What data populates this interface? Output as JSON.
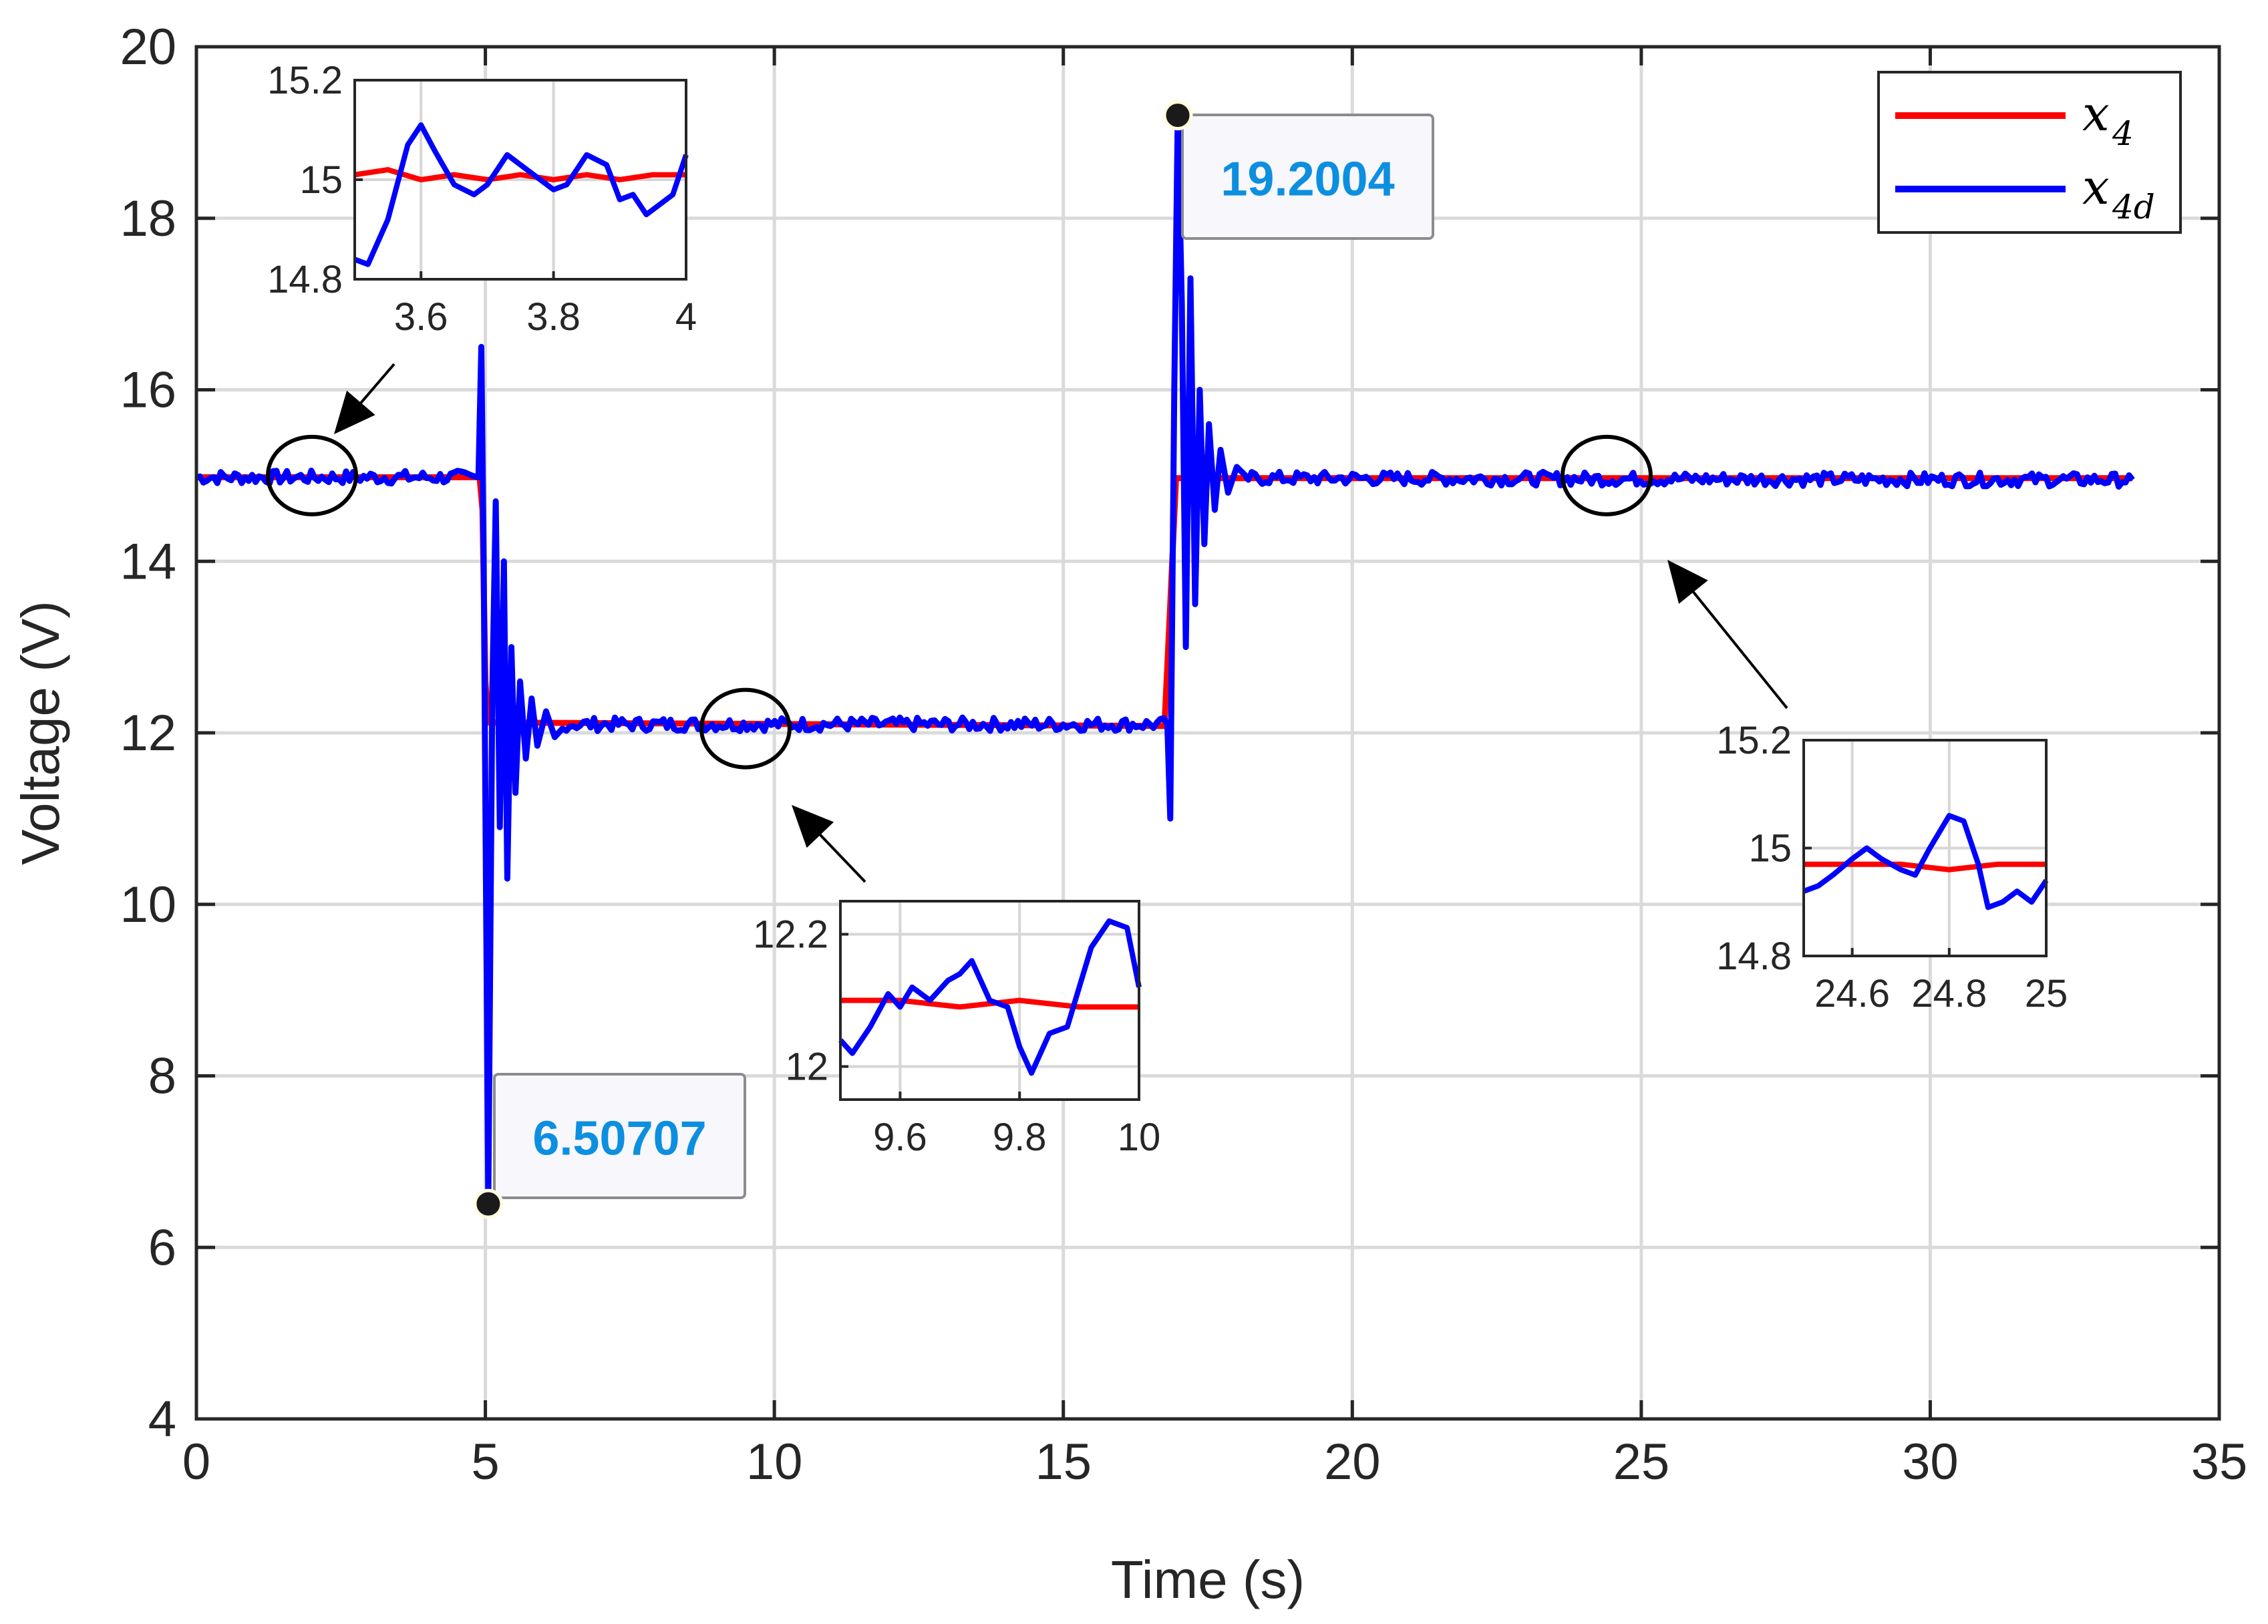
{
  "chart_data": {
    "type": "line",
    "xlabel": "Time (s)",
    "ylabel": "Voltage (V)",
    "xlim": [
      0,
      35
    ],
    "ylim": [
      4,
      20
    ],
    "xticks": [
      0,
      5,
      10,
      15,
      20,
      25,
      30,
      35
    ],
    "yticks": [
      4,
      6,
      8,
      10,
      12,
      14,
      16,
      18,
      20
    ],
    "grid": true,
    "legend_position": "top-right",
    "series": [
      {
        "name": "x4",
        "legend_label": "x",
        "legend_sub": "4",
        "color": "#ff0000",
        "points": [
          [
            0,
            14.98
          ],
          [
            4.9,
            14.98
          ],
          [
            4.95,
            14.6
          ],
          [
            5.0,
            12.6
          ],
          [
            5.05,
            12.12
          ],
          [
            16.75,
            12.08
          ],
          [
            16.85,
            13.5
          ],
          [
            16.95,
            14.97
          ],
          [
            33.5,
            14.97
          ]
        ]
      },
      {
        "name": "x4d",
        "legend_label": "x",
        "legend_sub": "4d",
        "color": "#0000ff",
        "points": [
          [
            0,
            14.98
          ],
          [
            4.88,
            14.98
          ],
          [
            4.93,
            16.5
          ],
          [
            4.97,
            14.0
          ],
          [
            5.05,
            6.51
          ],
          [
            5.12,
            12.5
          ],
          [
            5.18,
            14.7
          ],
          [
            5.25,
            10.9
          ],
          [
            5.32,
            14.0
          ],
          [
            5.38,
            10.3
          ],
          [
            5.45,
            13.0
          ],
          [
            5.52,
            11.3
          ],
          [
            5.6,
            12.6
          ],
          [
            5.7,
            11.7
          ],
          [
            5.8,
            12.4
          ],
          [
            5.9,
            11.85
          ],
          [
            6.05,
            12.25
          ],
          [
            6.2,
            11.95
          ],
          [
            6.4,
            12.1
          ],
          [
            16.8,
            12.1
          ],
          [
            16.85,
            11.0
          ],
          [
            16.92,
            16.0
          ],
          [
            16.98,
            19.2
          ],
          [
            17.05,
            17.0
          ],
          [
            17.12,
            13.0
          ],
          [
            17.2,
            17.3
          ],
          [
            17.28,
            13.5
          ],
          [
            17.36,
            16.0
          ],
          [
            17.44,
            14.2
          ],
          [
            17.52,
            15.6
          ],
          [
            17.62,
            14.6
          ],
          [
            17.72,
            15.3
          ],
          [
            17.85,
            14.8
          ],
          [
            18.0,
            15.1
          ],
          [
            18.2,
            14.97
          ],
          [
            33.5,
            14.95
          ]
        ]
      }
    ],
    "annotations": [
      {
        "x": 5.05,
        "y": 6.50707,
        "label": "6.50707"
      },
      {
        "x": 16.98,
        "y": 19.2004,
        "label": "19.2004"
      }
    ],
    "insets": [
      {
        "name": "inset-1",
        "xlim": [
          3.5,
          4.0
        ],
        "ylim": [
          14.8,
          15.2
        ],
        "xticks": [
          3.6,
          3.8,
          4.0
        ],
        "xtick_labels": [
          "3.6",
          "3.8",
          "4"
        ],
        "yticks": [
          14.8,
          15.0,
          15.2
        ],
        "ytick_labels": [
          "14.8",
          "15",
          "15.2"
        ],
        "zoom_center": [
          2.0,
          15.0
        ],
        "x4": [
          [
            3.5,
            15.01
          ],
          [
            3.55,
            15.02
          ],
          [
            3.6,
            15.0
          ],
          [
            3.65,
            15.01
          ],
          [
            3.7,
            15.0
          ],
          [
            3.75,
            15.01
          ],
          [
            3.8,
            15.0
          ],
          [
            3.85,
            15.01
          ],
          [
            3.9,
            15.0
          ],
          [
            3.95,
            15.01
          ],
          [
            4.0,
            15.01
          ]
        ],
        "x4d": [
          [
            3.5,
            14.84
          ],
          [
            3.52,
            14.83
          ],
          [
            3.55,
            14.92
          ],
          [
            3.58,
            15.07
          ],
          [
            3.6,
            15.11
          ],
          [
            3.62,
            15.06
          ],
          [
            3.65,
            14.99
          ],
          [
            3.68,
            14.97
          ],
          [
            3.7,
            14.99
          ],
          [
            3.73,
            15.05
          ],
          [
            3.75,
            15.03
          ],
          [
            3.78,
            15.0
          ],
          [
            3.8,
            14.98
          ],
          [
            3.82,
            14.99
          ],
          [
            3.85,
            15.05
          ],
          [
            3.88,
            15.03
          ],
          [
            3.9,
            14.96
          ],
          [
            3.92,
            14.97
          ],
          [
            3.94,
            14.93
          ],
          [
            3.96,
            14.95
          ],
          [
            3.98,
            14.97
          ],
          [
            4.0,
            15.05
          ]
        ]
      },
      {
        "name": "inset-2",
        "xlim": [
          9.5,
          10.0
        ],
        "ylim": [
          11.95,
          12.25
        ],
        "xticks": [
          9.6,
          9.8,
          10.0
        ],
        "xtick_labels": [
          "9.6",
          "9.8",
          "10"
        ],
        "yticks": [
          12.0,
          12.2
        ],
        "ytick_labels": [
          "12",
          "12.2"
        ],
        "zoom_center": [
          9.5,
          12.05
        ],
        "x4": [
          [
            9.5,
            12.1
          ],
          [
            9.6,
            12.1
          ],
          [
            9.7,
            12.09
          ],
          [
            9.8,
            12.1
          ],
          [
            9.9,
            12.09
          ],
          [
            10.0,
            12.09
          ]
        ],
        "x4d": [
          [
            9.5,
            12.04
          ],
          [
            9.52,
            12.02
          ],
          [
            9.55,
            12.06
          ],
          [
            9.58,
            12.11
          ],
          [
            9.6,
            12.09
          ],
          [
            9.62,
            12.12
          ],
          [
            9.65,
            12.1
          ],
          [
            9.68,
            12.13
          ],
          [
            9.7,
            12.14
          ],
          [
            9.72,
            12.16
          ],
          [
            9.75,
            12.1
          ],
          [
            9.78,
            12.09
          ],
          [
            9.8,
            12.03
          ],
          [
            9.82,
            11.99
          ],
          [
            9.85,
            12.05
          ],
          [
            9.88,
            12.06
          ],
          [
            9.9,
            12.12
          ],
          [
            9.92,
            12.18
          ],
          [
            9.95,
            12.22
          ],
          [
            9.98,
            12.21
          ],
          [
            10.0,
            12.12
          ]
        ]
      },
      {
        "name": "inset-3",
        "xlim": [
          24.5,
          25.0
        ],
        "ylim": [
          14.8,
          15.2
        ],
        "xticks": [
          24.6,
          24.8,
          25.0
        ],
        "xtick_labels": [
          "24.6",
          "24.8",
          "25"
        ],
        "yticks": [
          14.8,
          15.0,
          15.2
        ],
        "ytick_labels": [
          "14.8",
          "15",
          "15.2"
        ],
        "zoom_center": [
          24.4,
          15.0
        ],
        "x4": [
          [
            24.5,
            14.97
          ],
          [
            24.6,
            14.97
          ],
          [
            24.7,
            14.97
          ],
          [
            24.8,
            14.96
          ],
          [
            24.9,
            14.97
          ],
          [
            25.0,
            14.97
          ]
        ],
        "x4d": [
          [
            24.5,
            14.92
          ],
          [
            24.53,
            14.93
          ],
          [
            24.56,
            14.95
          ],
          [
            24.6,
            14.98
          ],
          [
            24.63,
            15.0
          ],
          [
            24.66,
            14.98
          ],
          [
            24.7,
            14.96
          ],
          [
            24.73,
            14.95
          ],
          [
            24.76,
            15.0
          ],
          [
            24.8,
            15.06
          ],
          [
            24.83,
            15.05
          ],
          [
            24.86,
            14.97
          ],
          [
            24.88,
            14.89
          ],
          [
            24.91,
            14.9
          ],
          [
            24.94,
            14.92
          ],
          [
            24.97,
            14.9
          ],
          [
            25.0,
            14.94
          ]
        ]
      }
    ]
  }
}
